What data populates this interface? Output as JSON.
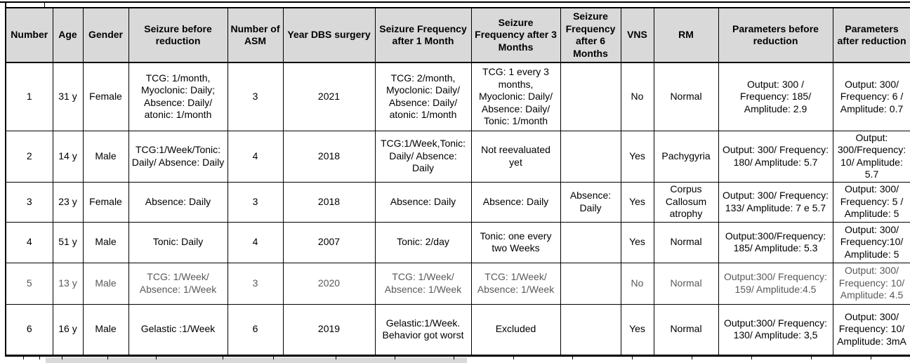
{
  "colors": {
    "header_bg": "#D9D9D9",
    "grid_border": "#000000",
    "text": "#000000",
    "muted_text": "#595959",
    "page_bg": "#FFFFFF"
  },
  "table": {
    "columns": [
      "Number",
      "Age",
      "Gender",
      "Seizure before reduction",
      "Number of ASM",
      "Year DBS surgery",
      "Seizure Frequency after 1 Month",
      "Seizure Frequency after 3 Months",
      "Seizure Frequency after 6 Months",
      "VNS",
      "RM",
      "Parameters before reduction",
      "Parameters after reduction"
    ],
    "rows": [
      {
        "muted": false,
        "cells": [
          "1",
          "31 y",
          "Female",
          "TCG: 1/month, Myoclonic: Daily; Absence: Daily/ atonic: 1/month",
          "3",
          "2021",
          "TCG: 2/month, Myoclonic: Daily/ Absence: Daily/ atonic: 1/month",
          "TCG: 1 every 3 months, Myoclonic: Daily/ Absence: Daily/ Tonic: 1/month",
          "",
          "No",
          "Normal",
          "Output: 300 / Frequency: 185/ Amplitude: 2.9",
          "Output: 300/ Frequency: 6 / Amplitude: 0.7"
        ]
      },
      {
        "muted": false,
        "cells": [
          "2",
          "14 y",
          "Male",
          "TCG:1/Week/Tonic: Daily/ Absence: Daily",
          "4",
          "2018",
          "TCG:1/Week,Tonic: Daily/ Absence: Daily",
          "Not reevaluated yet",
          "",
          "Yes",
          "Pachygyria",
          "Output: 300/ Frequency: 180/ Amplitude: 5.7",
          "Output: 300/Frequency: 10/ Amplitude: 5.7"
        ]
      },
      {
        "muted": false,
        "cells": [
          "3",
          "23 y",
          "Female",
          "Absence: Daily",
          "3",
          "2018",
          "Absence: Daily",
          "Absence: Daily",
          "Absence: Daily",
          "Yes",
          "Corpus Callosum atrophy",
          "Output: 300/ Frequency: 133/ Amplitude: 7 e 5.7",
          "Output: 300/ Frequency: 5 / Amplitude: 5"
        ]
      },
      {
        "muted": false,
        "cells": [
          "4",
          "51 y",
          "Male",
          "Tonic: Daily",
          "4",
          "2007",
          "Tonic: 2/day",
          "Tonic: one every two Weeks",
          "",
          "Yes",
          "Normal",
          "Output:300/Frequency: 185/ Amplitude: 5.3",
          "Output: 300/ Frequency:10/ Amplitude: 5"
        ]
      },
      {
        "muted": true,
        "cells": [
          "5",
          "13 y",
          "Male",
          "TCG: 1/Week/ Absence: 1/Week",
          "3",
          "2020",
          "TCG: 1/Week/ Absence: 1/Week",
          "TCG: 1/Week/ Absence: 1/Week",
          "",
          "No",
          "Normal",
          "Output:300/ Frequency: 159/ Amplitude:4.5",
          "Output: 300/ Frequency: 10/ Amplitude: 4.5"
        ]
      },
      {
        "muted": false,
        "cells": [
          "6",
          "16 y",
          "Male",
          "Gelastic :1/Week",
          "6",
          "2019",
          "Gelastic:1/Week. Behavior got worst",
          "Excluded",
          "",
          "Yes",
          "Normal",
          "Output:300/ Frequency: 130/ Amplitude: 3,5",
          "Output: 300/ Frequency: 10/ Amplitude: 3mA"
        ]
      }
    ]
  }
}
